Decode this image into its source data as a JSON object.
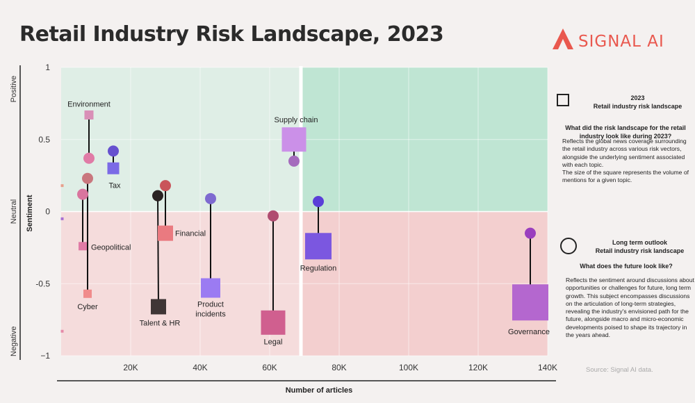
{
  "title": "Retail Industry Risk Landscape, 2023",
  "logo": {
    "text": "SIGNAL AI",
    "color": "#e9584e"
  },
  "chart_data": {
    "type": "scatter",
    "title": "Retail Industry Risk Landscape, 2023",
    "xlabel": "Number of articles",
    "ylabel": "Sentiment",
    "xlim": [
      0,
      140000
    ],
    "ylim": [
      -1,
      1
    ],
    "x_ticks": [
      {
        "value": 20000,
        "label": "20K"
      },
      {
        "value": 40000,
        "label": "40K"
      },
      {
        "value": 60000,
        "label": "60K"
      },
      {
        "value": 80000,
        "label": "80K"
      },
      {
        "value": 100000,
        "label": "100K"
      },
      {
        "value": 120000,
        "label": "120K"
      },
      {
        "value": 140000,
        "label": "140K"
      }
    ],
    "y_ticks": [
      {
        "value": 1,
        "label": "1"
      },
      {
        "value": 0.5,
        "label": "0.5"
      },
      {
        "value": 0,
        "label": "0"
      },
      {
        "value": -0.5,
        "label": "-0.5"
      },
      {
        "value": -1,
        "label": "−1"
      }
    ],
    "y_side_labels": [
      {
        "value": 0.85,
        "label": "Positive"
      },
      {
        "value": 0,
        "label": "Neutral"
      },
      {
        "value": -0.9,
        "label": "Negative"
      }
    ],
    "zone_divider_x": 69000,
    "zone_colors": {
      "positive_left": "#dfeee6",
      "positive_right": "#bfe5d3",
      "negative_left": "#f5dcdc",
      "negative_right": "#f3cfcf"
    },
    "grid": true,
    "topics": [
      {
        "label": "Environment",
        "x": 8000,
        "square_sentiment": 0.67,
        "circle_sentiment": 0.37,
        "circle_x": 8000,
        "size": 13,
        "square_color": "#d98fb7",
        "circle_color": "#e07ba6"
      },
      {
        "label": "Tax",
        "x": 15000,
        "square_sentiment": 0.3,
        "circle_sentiment": 0.42,
        "circle_x": 15000,
        "size": 17,
        "square_color": "#7b6ae6",
        "circle_color": "#6651cf"
      },
      {
        "label": "Geopolitical",
        "x": 6200,
        "square_sentiment": -0.24,
        "circle_sentiment": 0.12,
        "circle_x": 6200,
        "size": 12,
        "square_color": "#e07ba6",
        "circle_color": "#d9759e"
      },
      {
        "label": "Cyber",
        "x": 7600,
        "square_sentiment": -0.57,
        "circle_sentiment": 0.23,
        "circle_x": 7600,
        "size": 12,
        "square_color": "#f08b8b",
        "circle_color": "#c9777e"
      },
      {
        "label": "Talent & HR",
        "x": 28000,
        "square_sentiment": -0.66,
        "circle_sentiment": 0.11,
        "circle_x": 27800,
        "size": 22,
        "square_color": "#3f3636",
        "circle_color": "#2a2222"
      },
      {
        "label": "Financial",
        "x": 30000,
        "square_sentiment": -0.15,
        "circle_sentiment": 0.18,
        "circle_x": 30000,
        "size": 22,
        "square_color": "#ea7a80",
        "circle_color": "#c9545a"
      },
      {
        "label": "Product incidents",
        "x": 43000,
        "square_sentiment": -0.53,
        "circle_sentiment": 0.09,
        "circle_x": 43000,
        "size": 28,
        "square_color": "#9b7bf2",
        "circle_color": "#7e6ad0"
      },
      {
        "label": "Supply chain",
        "x": 67000,
        "square_sentiment": 0.5,
        "circle_sentiment": 0.35,
        "circle_x": 67000,
        "size": 35,
        "square_color": "#cb90e8",
        "circle_color": "#a56bbd"
      },
      {
        "label": "Legal",
        "x": 61000,
        "square_sentiment": -0.77,
        "circle_sentiment": -0.03,
        "circle_x": 61000,
        "size": 35,
        "square_color": "#d05f8f",
        "circle_color": "#b04c70"
      },
      {
        "label": "Regulation",
        "x": 74000,
        "square_sentiment": -0.24,
        "circle_sentiment": 0.07,
        "circle_x": 74000,
        "size": 38,
        "square_color": "#7b57e0",
        "circle_color": "#5a3fd8"
      },
      {
        "label": "Governance",
        "x": 135000,
        "square_sentiment": -0.63,
        "circle_sentiment": -0.15,
        "circle_x": 135000,
        "size": 52,
        "square_color": "#b467cf",
        "circle_color": "#9a3fbe"
      }
    ],
    "edge_markers": [
      {
        "sentiment": 0.18,
        "color": "#e7a08c"
      },
      {
        "sentiment": -0.05,
        "color": "#a96fd2"
      },
      {
        "sentiment": -0.83,
        "color": "#e58aa8"
      }
    ]
  },
  "legend": {
    "square": {
      "year": "2023",
      "heading": "Retail industry risk landscape",
      "question": "What did the risk landscape for the retail industry look like during 2023?",
      "body": "Reflects the global news coverage surrounding the retail industry across various risk vectors, alongside the underlying sentiment associated with each topic.\nThe size of the square represents the volume of mentions for a given topic."
    },
    "circle": {
      "heading1": "Long term outlook",
      "heading2": "Retail industry risk landscape",
      "question": "What does the future look like?",
      "body": "Reflects the sentiment around discussions about opportunities or challenges for future, long term growth. This subject encompasses discussions on the articulation of long-term strategies, revealing the industry's envisioned path for the future, alongside macro and micro-economic developments poised to shape its trajectory in the years ahead."
    }
  },
  "source": "Source: Signal AI data."
}
